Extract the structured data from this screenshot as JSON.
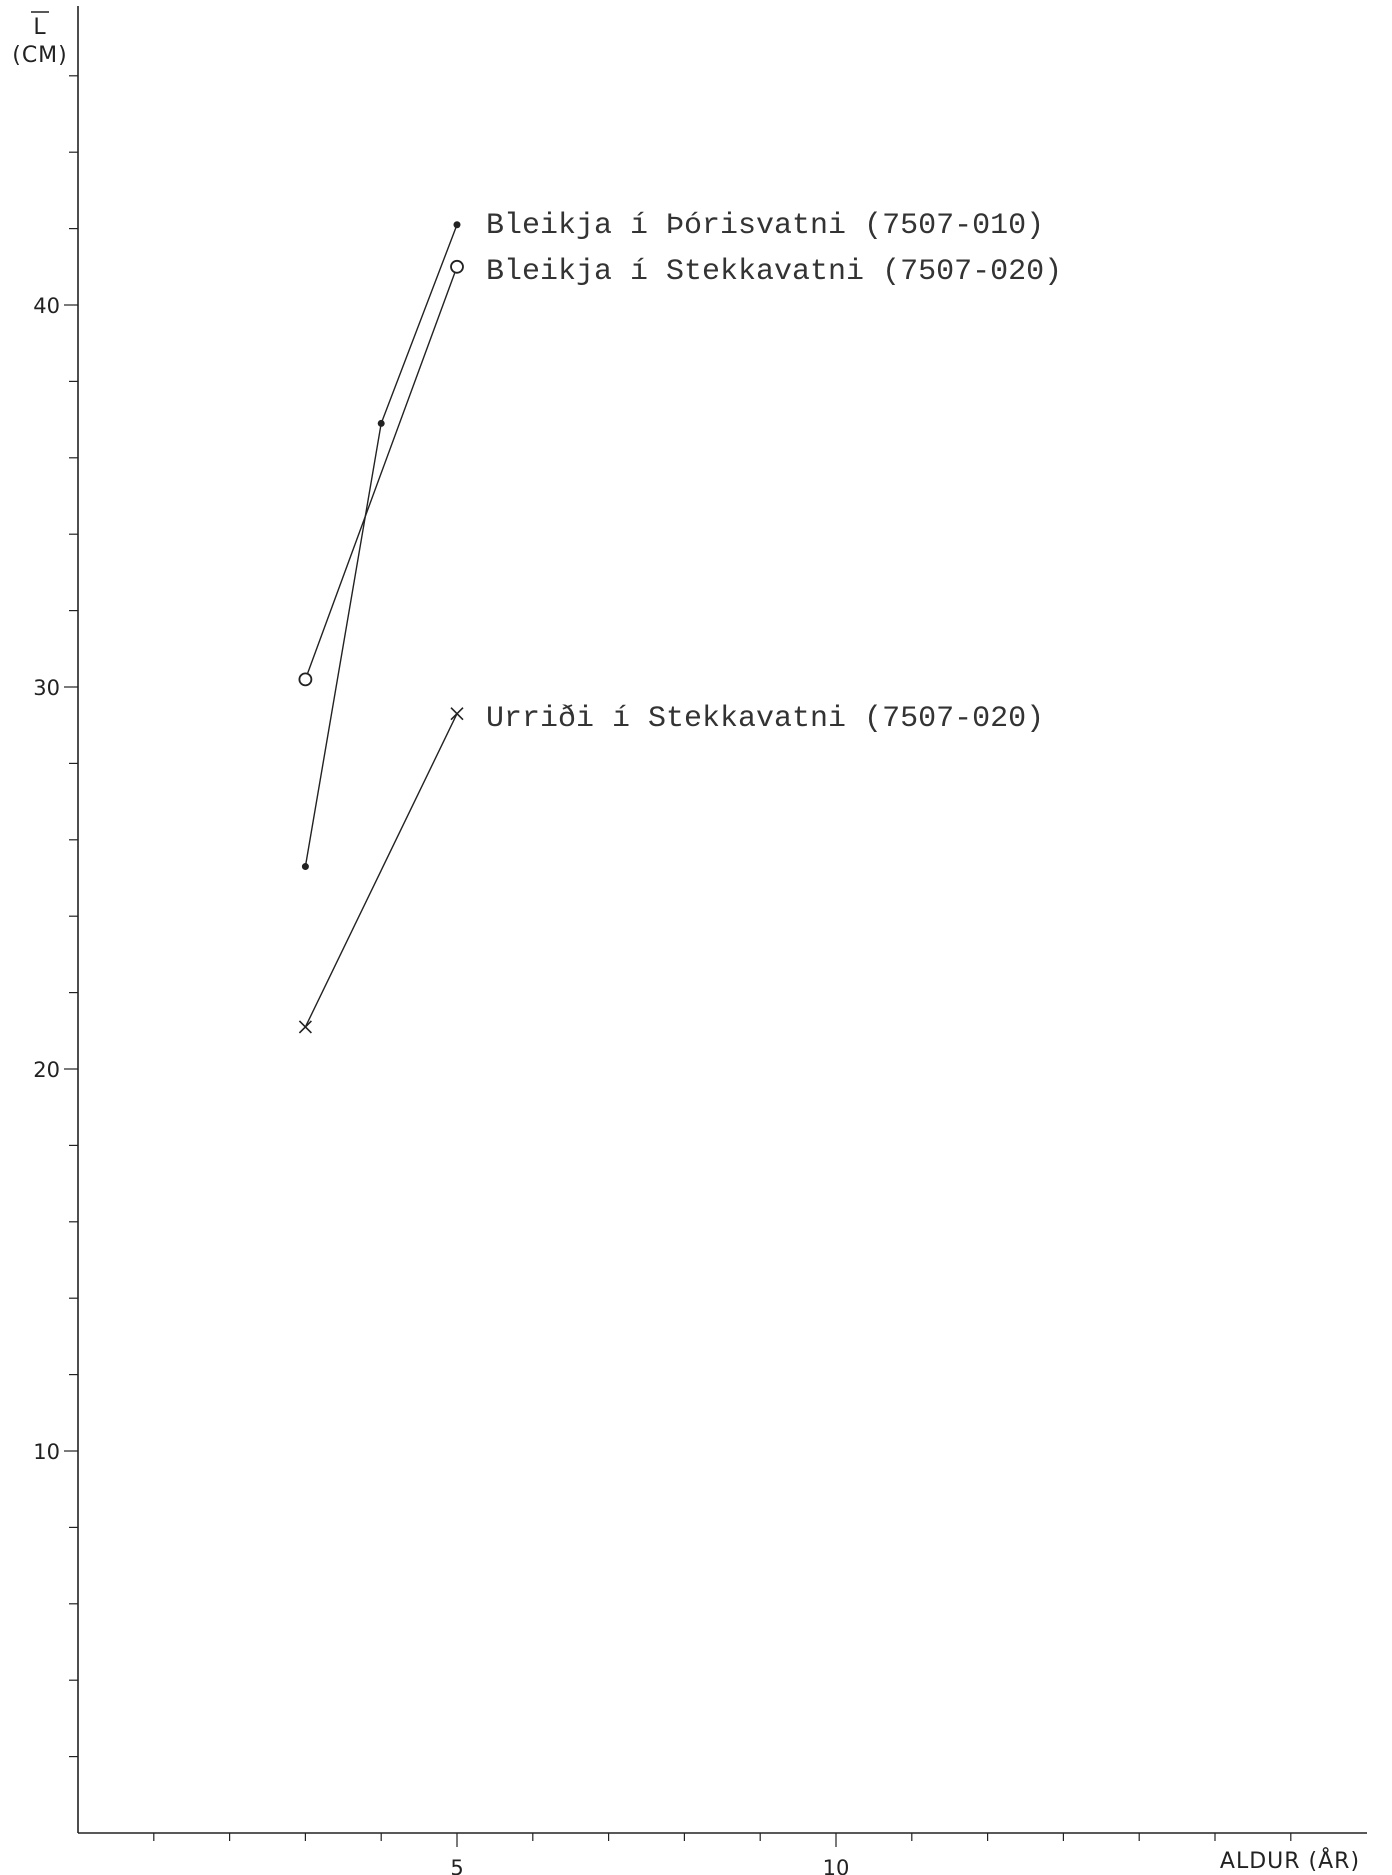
{
  "chart_data": {
    "type": "line",
    "xlabel": "ALDUR (ÅR)",
    "ylabel_top": "L",
    "ylabel_bottom": "(CM)",
    "xlim": [
      0,
      17
    ],
    "ylim": [
      0,
      48
    ],
    "x_ticks": [
      1,
      2,
      3,
      4,
      5,
      6,
      7,
      8,
      9,
      10,
      11,
      12,
      13,
      14,
      15,
      16
    ],
    "x_tick_labels": [
      {
        "value": 5,
        "label": "5"
      },
      {
        "value": 10,
        "label": "10"
      }
    ],
    "y_ticks": [
      2,
      4,
      6,
      8,
      10,
      12,
      14,
      16,
      18,
      20,
      22,
      24,
      26,
      28,
      30,
      32,
      34,
      36,
      38,
      40,
      42,
      44,
      46
    ],
    "y_tick_labels": [
      {
        "value": 10,
        "label": "10"
      },
      {
        "value": 20,
        "label": "20"
      },
      {
        "value": 30,
        "label": "30"
      },
      {
        "value": 40,
        "label": "40"
      }
    ],
    "grid": false,
    "series": [
      {
        "name": "Bleikja í Þórisvatni (7507-010)",
        "marker": "dot",
        "x": [
          3,
          4,
          5
        ],
        "y": [
          25.3,
          36.9,
          42.1
        ]
      },
      {
        "name": "Bleikja í Stekkavatni (7507-020)",
        "marker": "circle",
        "x": [
          3,
          5
        ],
        "y": [
          30.2,
          41.0
        ]
      },
      {
        "name": "Urriði í Stekkavatni (7507-020)",
        "marker": "cross",
        "x": [
          3,
          5
        ],
        "y": [
          21.1,
          29.3
        ]
      }
    ]
  }
}
